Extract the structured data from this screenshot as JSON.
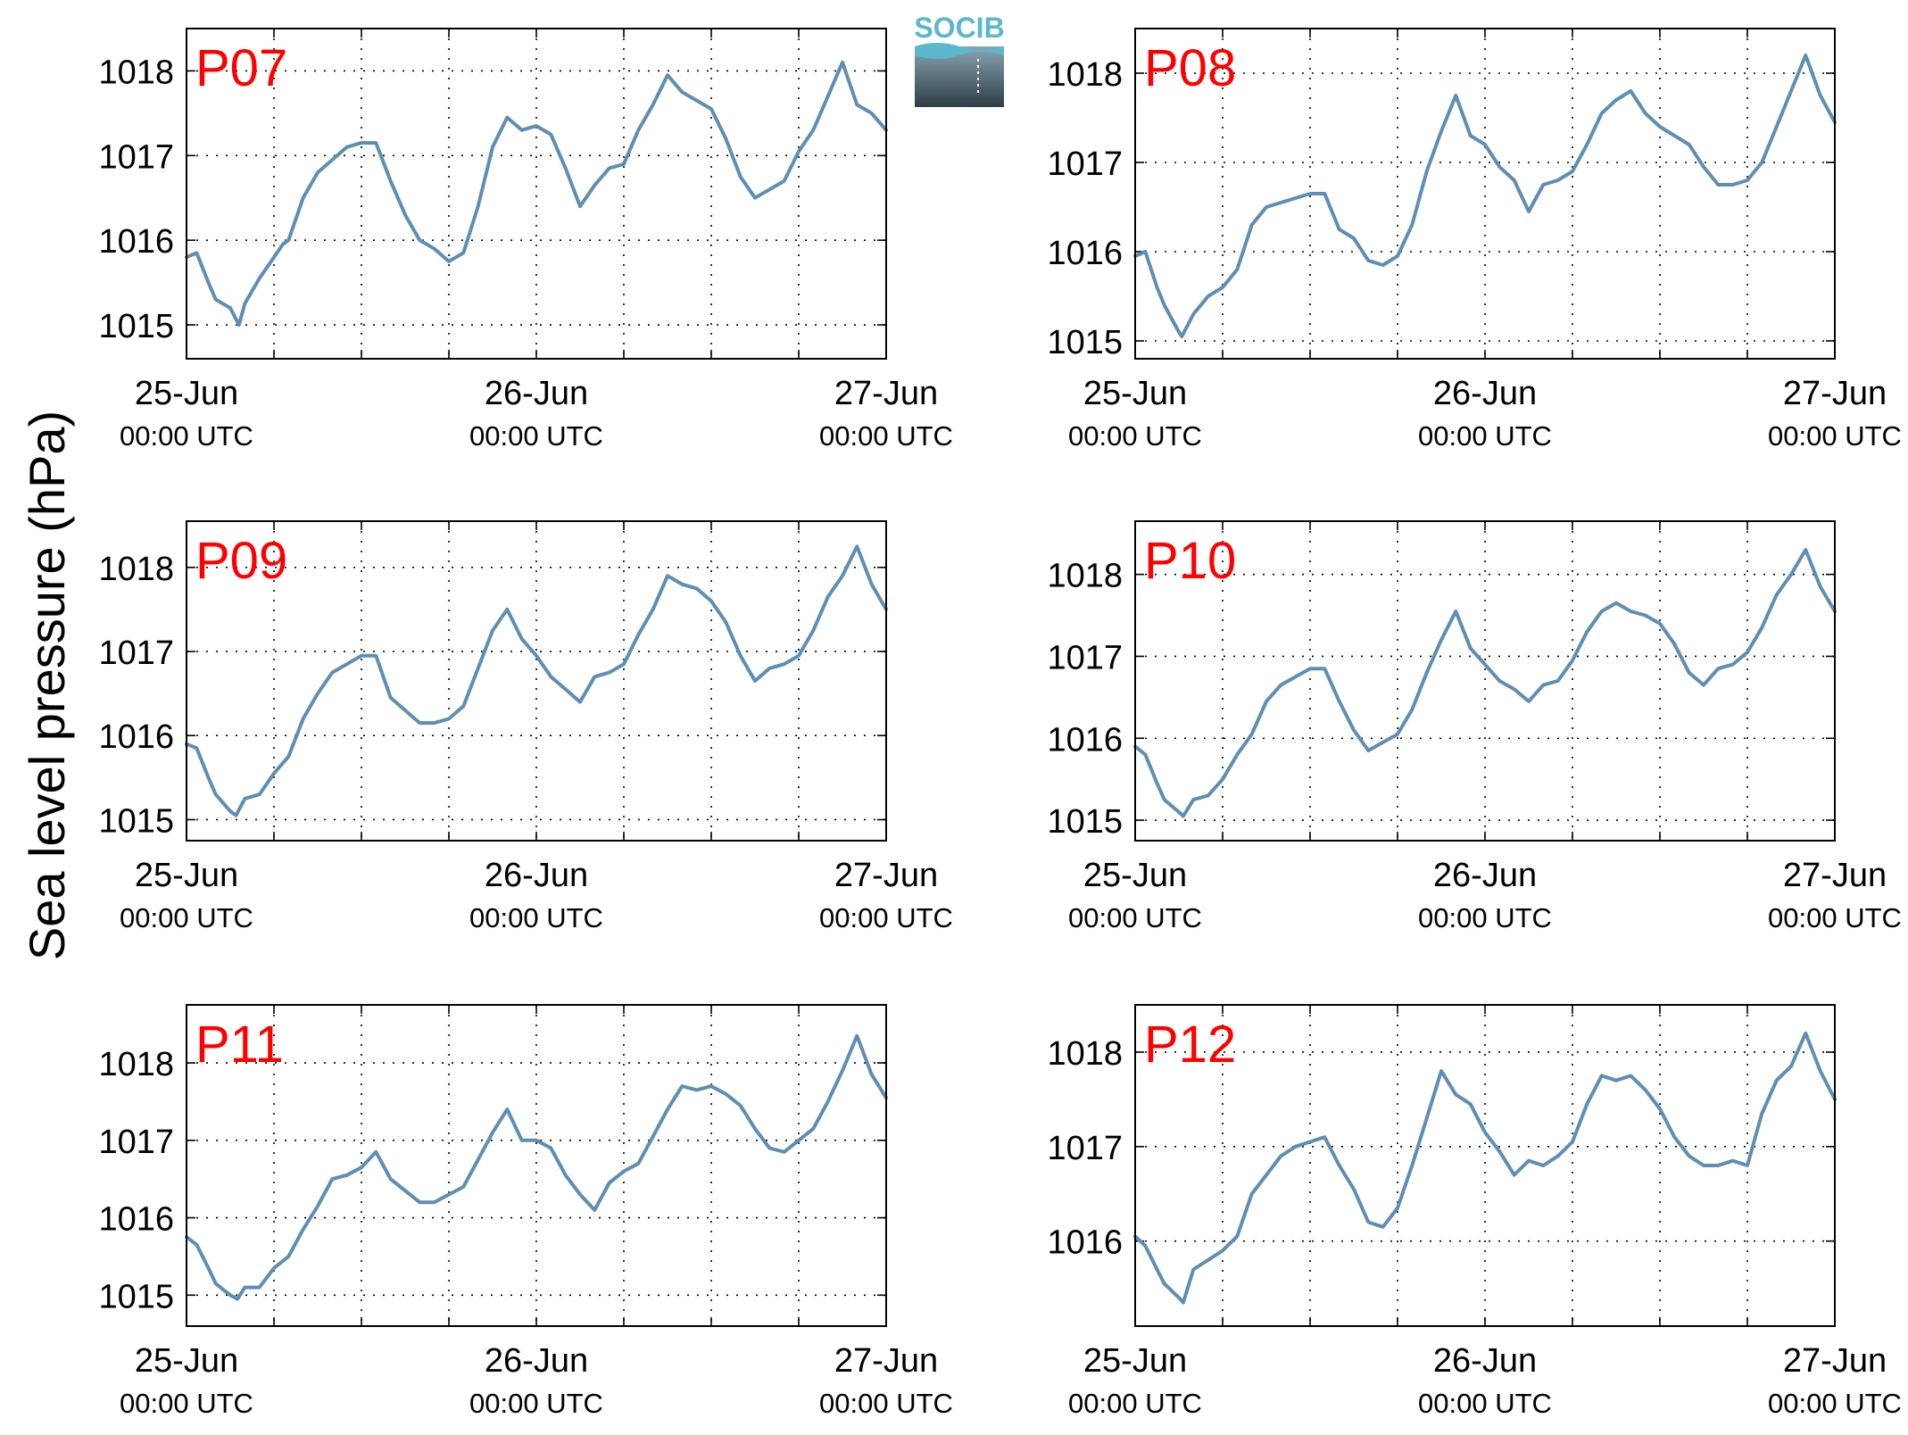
{
  "ylabel": "Sea level pressure (hPa)",
  "logo": {
    "text": "SOCIB"
  },
  "colors": {
    "line": "#5f8eb4",
    "panel_label": "#ff0000",
    "grid": "#000000",
    "logo_text": "#5bb8cc",
    "logo_top": "#8aa5b2",
    "logo_bottom": "#2d3e48"
  },
  "chart_data": [
    {
      "type": "line",
      "label": "P07",
      "ylim": [
        1014.6,
        1018.5
      ],
      "yticks": [
        1015,
        1016,
        1017,
        1018
      ],
      "x_range_hours": [
        0,
        48
      ],
      "grid": true,
      "xticks": [
        {
          "line1": "25-Jun",
          "line2": "00:00 UTC"
        },
        {
          "line1": "26-Jun",
          "line2": "00:00 UTC"
        },
        {
          "line1": "27-Jun",
          "line2": "00:00 UTC"
        }
      ],
      "hours": [
        0,
        0.7,
        1.5,
        2,
        3,
        3.6,
        4,
        5,
        6,
        6.6,
        7,
        8,
        9,
        10,
        11,
        12,
        13,
        14,
        15,
        16,
        17,
        18,
        19,
        20,
        21,
        22,
        23,
        24,
        25,
        26,
        27,
        28,
        29,
        30,
        31,
        32,
        33,
        34,
        35,
        36,
        37,
        38,
        39,
        40,
        41,
        42,
        43,
        44,
        45,
        46,
        47,
        48
      ],
      "values": [
        1015.8,
        1015.85,
        1015.5,
        1015.3,
        1015.2,
        1015.0,
        1015.25,
        1015.55,
        1015.8,
        1015.95,
        1016.0,
        1016.5,
        1016.8,
        1016.95,
        1017.1,
        1017.15,
        1017.15,
        1016.7,
        1016.3,
        1016.0,
        1015.9,
        1015.75,
        1015.85,
        1016.4,
        1017.1,
        1017.45,
        1017.3,
        1017.35,
        1017.25,
        1016.85,
        1016.4,
        1016.65,
        1016.85,
        1016.9,
        1017.3,
        1017.6,
        1017.95,
        1017.75,
        1017.65,
        1017.55,
        1017.2,
        1016.75,
        1016.5,
        1016.6,
        1016.7,
        1017.05,
        1017.3,
        1017.7,
        1018.1,
        1017.6,
        1017.5,
        1017.3
      ]
    },
    {
      "type": "line",
      "label": "P08",
      "ylim": [
        1014.8,
        1018.5
      ],
      "yticks": [
        1015,
        1016,
        1017,
        1018
      ],
      "x_range_hours": [
        0,
        48
      ],
      "grid": true,
      "xticks": [
        {
          "line1": "25-Jun",
          "line2": "00:00 UTC"
        },
        {
          "line1": "26-Jun",
          "line2": "00:00 UTC"
        },
        {
          "line1": "27-Jun",
          "line2": "00:00 UTC"
        }
      ],
      "hours": [
        0,
        0.7,
        1.5,
        2,
        3,
        3.2,
        4,
        5,
        6,
        7,
        8,
        9,
        10,
        11,
        12,
        13,
        14,
        15,
        16,
        17,
        18,
        19,
        20,
        21,
        22,
        23,
        24,
        25,
        26,
        27,
        28,
        29,
        30,
        31,
        32,
        33,
        34,
        35,
        36,
        37,
        38,
        39,
        40,
        41,
        42,
        43,
        44,
        45,
        46,
        47,
        48
      ],
      "values": [
        1015.95,
        1016.0,
        1015.6,
        1015.4,
        1015.1,
        1015.05,
        1015.3,
        1015.5,
        1015.6,
        1015.8,
        1016.3,
        1016.5,
        1016.55,
        1016.6,
        1016.65,
        1016.65,
        1016.25,
        1016.15,
        1015.9,
        1015.85,
        1015.95,
        1016.3,
        1016.9,
        1017.35,
        1017.75,
        1017.3,
        1017.2,
        1016.95,
        1016.8,
        1016.45,
        1016.75,
        1016.8,
        1016.9,
        1017.2,
        1017.55,
        1017.7,
        1017.8,
        1017.55,
        1017.4,
        1017.3,
        1017.2,
        1016.95,
        1016.75,
        1016.75,
        1016.8,
        1017.0,
        1017.4,
        1017.8,
        1018.2,
        1017.75,
        1017.45
      ]
    },
    {
      "type": "line",
      "label": "P09",
      "ylim": [
        1014.75,
        1018.55
      ],
      "yticks": [
        1015,
        1016,
        1017,
        1018
      ],
      "x_range_hours": [
        0,
        48
      ],
      "grid": true,
      "xticks": [
        {
          "line1": "25-Jun",
          "line2": "00:00 UTC"
        },
        {
          "line1": "26-Jun",
          "line2": "00:00 UTC"
        },
        {
          "line1": "27-Jun",
          "line2": "00:00 UTC"
        }
      ],
      "hours": [
        0,
        0.7,
        1.5,
        2,
        3,
        3.4,
        4,
        5,
        6,
        7,
        8,
        9,
        10,
        11,
        12,
        13,
        14,
        15,
        16,
        17,
        18,
        19,
        20,
        21,
        22,
        23,
        24,
        25,
        26,
        27,
        28,
        29,
        30,
        31,
        32,
        33,
        34,
        35,
        36,
        37,
        38,
        39,
        40,
        41,
        42,
        43,
        44,
        45,
        46,
        47,
        48
      ],
      "values": [
        1015.9,
        1015.85,
        1015.5,
        1015.3,
        1015.1,
        1015.05,
        1015.25,
        1015.3,
        1015.55,
        1015.75,
        1016.2,
        1016.5,
        1016.75,
        1016.85,
        1016.95,
        1016.95,
        1016.45,
        1016.3,
        1016.15,
        1016.15,
        1016.2,
        1016.35,
        1016.8,
        1017.25,
        1017.5,
        1017.15,
        1016.95,
        1016.7,
        1016.55,
        1016.4,
        1016.7,
        1016.75,
        1016.85,
        1017.2,
        1017.5,
        1017.9,
        1017.8,
        1017.75,
        1017.6,
        1017.35,
        1016.95,
        1016.65,
        1016.8,
        1016.85,
        1016.95,
        1017.25,
        1017.65,
        1017.9,
        1018.25,
        1017.8,
        1017.5
      ]
    },
    {
      "type": "line",
      "label": "P10",
      "ylim": [
        1014.75,
        1018.65
      ],
      "yticks": [
        1015,
        1016,
        1017,
        1018
      ],
      "x_range_hours": [
        0,
        48
      ],
      "grid": true,
      "xticks": [
        {
          "line1": "25-Jun",
          "line2": "00:00 UTC"
        },
        {
          "line1": "26-Jun",
          "line2": "00:00 UTC"
        },
        {
          "line1": "27-Jun",
          "line2": "00:00 UTC"
        }
      ],
      "hours": [
        0,
        0.7,
        1.5,
        2,
        3,
        3.3,
        4,
        5,
        6,
        7,
        8,
        9,
        10,
        11,
        12,
        13,
        14,
        15,
        16,
        17,
        18,
        19,
        20,
        21,
        22,
        23,
        24,
        25,
        26,
        27,
        28,
        29,
        30,
        31,
        32,
        33,
        34,
        35,
        36,
        37,
        38,
        39,
        40,
        41,
        42,
        43,
        44,
        45,
        46,
        47,
        48
      ],
      "values": [
        1015.9,
        1015.8,
        1015.45,
        1015.25,
        1015.1,
        1015.05,
        1015.25,
        1015.3,
        1015.5,
        1015.8,
        1016.05,
        1016.45,
        1016.65,
        1016.75,
        1016.85,
        1016.85,
        1016.45,
        1016.1,
        1015.85,
        1015.95,
        1016.05,
        1016.35,
        1016.8,
        1017.2,
        1017.55,
        1017.1,
        1016.9,
        1016.7,
        1016.6,
        1016.45,
        1016.65,
        1016.7,
        1016.95,
        1017.3,
        1017.55,
        1017.65,
        1017.55,
        1017.5,
        1017.4,
        1017.15,
        1016.8,
        1016.65,
        1016.85,
        1016.9,
        1017.05,
        1017.35,
        1017.75,
        1018.0,
        1018.3,
        1017.85,
        1017.55
      ]
    },
    {
      "type": "line",
      "label": "P11",
      "ylim": [
        1014.6,
        1018.75
      ],
      "yticks": [
        1015,
        1016,
        1017,
        1018
      ],
      "x_range_hours": [
        0,
        48
      ],
      "grid": true,
      "xticks": [
        {
          "line1": "25-Jun",
          "line2": "00:00 UTC"
        },
        {
          "line1": "26-Jun",
          "line2": "00:00 UTC"
        },
        {
          "line1": "27-Jun",
          "line2": "00:00 UTC"
        }
      ],
      "hours": [
        0,
        0.7,
        1.5,
        2,
        3,
        3.5,
        4,
        5,
        6,
        7,
        8,
        9,
        10,
        11,
        12,
        13,
        14,
        15,
        16,
        17,
        18,
        19,
        20,
        21,
        22,
        23,
        24,
        25,
        26,
        27,
        28,
        29,
        30,
        31,
        32,
        33,
        34,
        35,
        36,
        37,
        38,
        39,
        40,
        41,
        42,
        43,
        44,
        45,
        46,
        47,
        48
      ],
      "values": [
        1015.75,
        1015.65,
        1015.35,
        1015.15,
        1015.0,
        1014.95,
        1015.1,
        1015.1,
        1015.35,
        1015.5,
        1015.85,
        1016.15,
        1016.5,
        1016.55,
        1016.65,
        1016.85,
        1016.5,
        1016.35,
        1016.2,
        1016.2,
        1016.3,
        1016.4,
        1016.75,
        1017.1,
        1017.4,
        1017.0,
        1017.0,
        1016.9,
        1016.55,
        1016.3,
        1016.1,
        1016.45,
        1016.6,
        1016.7,
        1017.05,
        1017.4,
        1017.7,
        1017.65,
        1017.7,
        1017.6,
        1017.45,
        1017.15,
        1016.9,
        1016.85,
        1017.0,
        1017.15,
        1017.5,
        1017.9,
        1018.35,
        1017.85,
        1017.55
      ]
    },
    {
      "type": "line",
      "label": "P12",
      "ylim": [
        1015.1,
        1018.5
      ],
      "yticks": [
        1016,
        1017,
        1018
      ],
      "x_range_hours": [
        0,
        48
      ],
      "grid": true,
      "xticks": [
        {
          "line1": "25-Jun",
          "line2": "00:00 UTC"
        },
        {
          "line1": "26-Jun",
          "line2": "00:00 UTC"
        },
        {
          "line1": "27-Jun",
          "line2": "00:00 UTC"
        }
      ],
      "hours": [
        0,
        0.7,
        1.5,
        2,
        3,
        3.3,
        4,
        5,
        6,
        7,
        8,
        9,
        10,
        11,
        12,
        13,
        14,
        15,
        16,
        17,
        18,
        19,
        20,
        21,
        22,
        23,
        24,
        25,
        26,
        27,
        28,
        29,
        30,
        31,
        32,
        33,
        34,
        35,
        36,
        37,
        38,
        39,
        40,
        41,
        42,
        43,
        44,
        45,
        46,
        47,
        48
      ],
      "values": [
        1016.05,
        1015.95,
        1015.7,
        1015.55,
        1015.4,
        1015.35,
        1015.7,
        1015.8,
        1015.9,
        1016.05,
        1016.5,
        1016.7,
        1016.9,
        1017.0,
        1017.05,
        1017.1,
        1016.8,
        1016.55,
        1016.2,
        1016.15,
        1016.35,
        1016.8,
        1017.3,
        1017.8,
        1017.55,
        1017.45,
        1017.15,
        1016.95,
        1016.7,
        1016.85,
        1016.8,
        1016.9,
        1017.05,
        1017.45,
        1017.75,
        1017.7,
        1017.75,
        1017.6,
        1017.4,
        1017.1,
        1016.9,
        1016.8,
        1016.8,
        1016.85,
        1016.8,
        1017.35,
        1017.7,
        1017.85,
        1018.2,
        1017.8,
        1017.5
      ]
    }
  ]
}
